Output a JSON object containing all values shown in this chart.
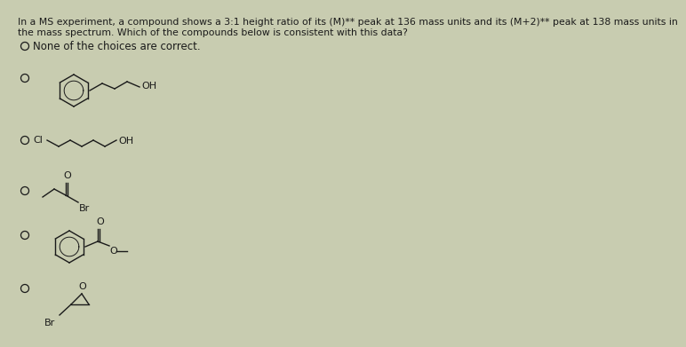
{
  "bg_color": "#c8ccb0",
  "text_color": "#1a1a1a",
  "title_line1": "In a MS experiment, a compound shows a 3:1 height ratio of its (M)** peak at 136 mass units and its (M+2)** peak at 138 mass units in",
  "title_line2": "the mass spectrum. Which of the compounds below is consistent with this data?",
  "choice0_text": "None of the choices are correct.",
  "font_size_title": 7.8,
  "font_size_body": 8.5,
  "font_size_label": 8.0
}
